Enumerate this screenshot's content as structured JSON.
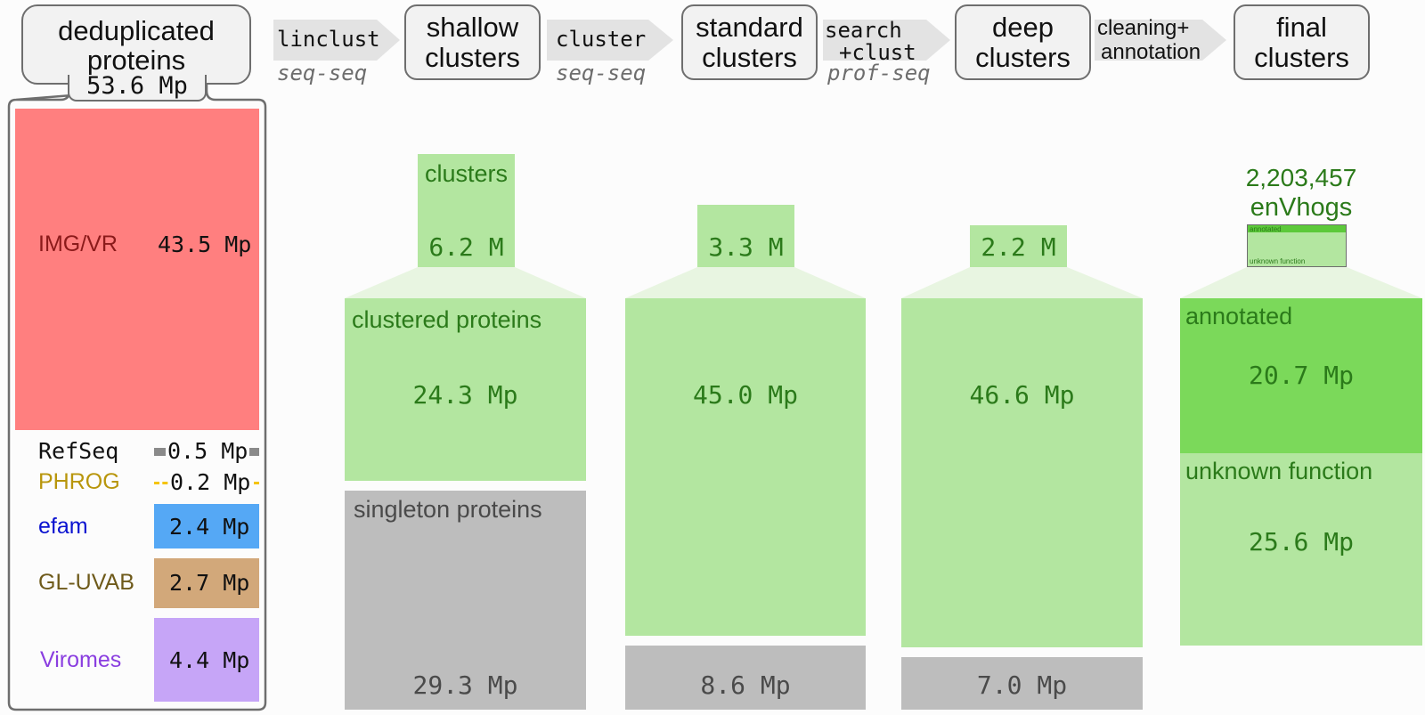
{
  "pipeline": {
    "stages": [
      {
        "id": "dedup",
        "label": "deduplicated proteins",
        "line1": "deduplicated",
        "line2": "proteins",
        "value": "53.6 Mp"
      },
      {
        "id": "shallow",
        "line1": "shallow",
        "line2": "clusters"
      },
      {
        "id": "standard",
        "line1": "standard",
        "line2": "clusters"
      },
      {
        "id": "deep",
        "line1": "deep",
        "line2": "clusters"
      },
      {
        "id": "final",
        "line1": "final",
        "line2": "clusters"
      }
    ],
    "steps": [
      {
        "tool": "linclust",
        "mode": "seq-seq"
      },
      {
        "tool": "cluster",
        "mode": "seq-seq"
      },
      {
        "tool_line1": "search",
        "tool_line2": "+clust",
        "mode": "prof-seq"
      },
      {
        "tool_line1": "cleaning+",
        "tool_line2": "annotation",
        "mode": ""
      }
    ]
  },
  "sources": [
    {
      "name": "IMG/VR",
      "value": "43.5 Mp",
      "value_mp": 43.5,
      "color": "#ff7f7f",
      "text_color": "#8b1a1a"
    },
    {
      "name": "RefSeq",
      "value": "0.5 Mp",
      "value_mp": 0.5,
      "color": "#8a8a8a",
      "text_color": "#111111"
    },
    {
      "name": "PHROG",
      "value": "0.2 Mp",
      "value_mp": 0.2,
      "color": "#f5c400",
      "text_color": "#b8960c"
    },
    {
      "name": "efam",
      "value": "2.4 Mp",
      "value_mp": 2.4,
      "color": "#55a8f5",
      "text_color": "#0a12d0"
    },
    {
      "name": "GL-UVAB",
      "value": "2.7 Mp",
      "value_mp": 2.7,
      "color": "#d2a87a",
      "text_color": "#6e5a1a"
    },
    {
      "name": "Viromes",
      "value": "4.4 Mp",
      "value_mp": 4.4,
      "color": "#c6a5f7",
      "text_color": "#8a3ee0"
    }
  ],
  "shallow": {
    "clusters_label": "clusters",
    "clusters_value": "6.2 M",
    "clusters_m": 6.2,
    "clustered_label": "clustered proteins",
    "clustered_value": "24.3 Mp",
    "clustered_mp": 24.3,
    "singleton_label": "singleton proteins",
    "singleton_value": "29.3 Mp",
    "singleton_mp": 29.3
  },
  "standard": {
    "clusters_value": "3.3 M",
    "clusters_m": 3.3,
    "clustered_value": "45.0 Mp",
    "clustered_mp": 45.0,
    "singleton_value": "8.6 Mp",
    "singleton_mp": 8.6
  },
  "deep": {
    "clusters_value": "2.2 M",
    "clusters_m": 2.2,
    "clustered_value": "46.6 Mp",
    "clustered_mp": 46.6,
    "singleton_value": "7.0 Mp",
    "singleton_mp": 7.0
  },
  "final": {
    "count_value": "2,203,457",
    "count_label": "enVhogs",
    "mini_annotated": "annotated",
    "mini_unknown": "unknown function",
    "annotated_label": "annotated",
    "annotated_value": "20.7 Mp",
    "annotated_mp": 20.7,
    "unknown_label": "unknown function",
    "unknown_value": "25.6 Mp",
    "unknown_mp": 25.6
  },
  "colors": {
    "clustered": "#b3e6a0",
    "annotated": "#7bd95a",
    "singleton": "#bdbdbd",
    "green_text": "#2b7a1a",
    "stage_fill": "#f2f2f2",
    "stage_border": "#6e6e6e",
    "arrow": "#e3e3e3"
  }
}
